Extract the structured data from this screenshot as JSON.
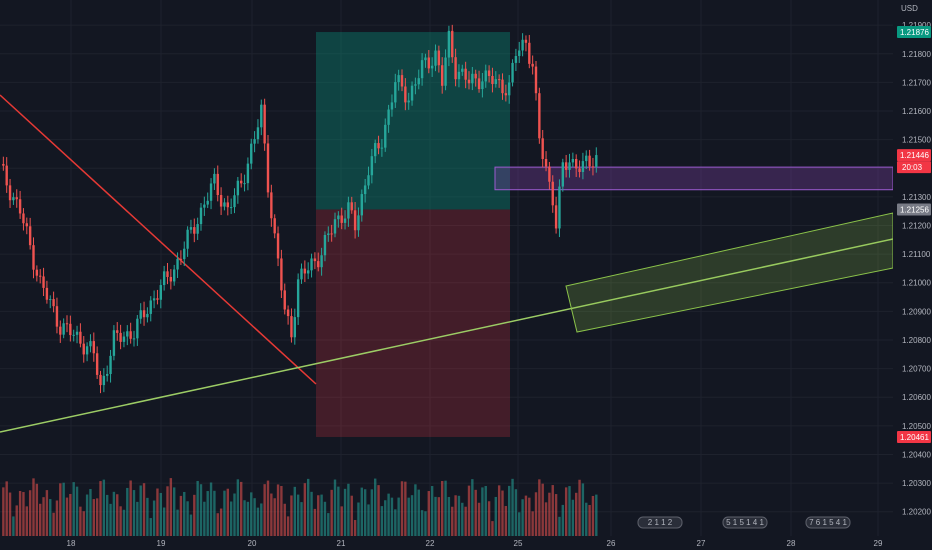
{
  "chart_data": {
    "type": "candlestick",
    "symbol_currency": "USD",
    "x_ticks": [
      "18",
      "19",
      "20",
      "21",
      "22",
      "25",
      "26",
      "27",
      "28",
      "29"
    ],
    "y_ticks": [
      "1.21900",
      "1.21800",
      "1.21700",
      "1.21600",
      "1.21500",
      "1.21400",
      "1.21300",
      "1.21200",
      "1.21100",
      "1.21000",
      "1.20900",
      "1.20800",
      "1.20700",
      "1.20600",
      "1.20500",
      "1.20400",
      "1.20300",
      "1.20200"
    ],
    "ylim": [
      1.2015,
      1.2196
    ],
    "price_tags": [
      {
        "value": 1.21876,
        "label": "1.21876",
        "color": "#089981"
      },
      {
        "value": 1.21446,
        "label": "1.21446",
        "color": "#f23645"
      },
      {
        "value": 1.21256,
        "label": "1.21256",
        "color": "#787b86"
      },
      {
        "value": 1.20461,
        "label": "1.20461",
        "color": "#f23645"
      }
    ],
    "countdown": "20:03",
    "position": {
      "entry": 1.21256,
      "target": 1.21876,
      "stop": 1.20461,
      "start": "21",
      "end": "25"
    },
    "zone": {
      "top": 1.21404,
      "bottom": 1.21325,
      "color": "#7b3fa0"
    },
    "event_badges": [
      "2 1 1 2",
      "5 1 5 1 4 1",
      "7 6 1 5 4 1"
    ]
  },
  "currency": "USD"
}
